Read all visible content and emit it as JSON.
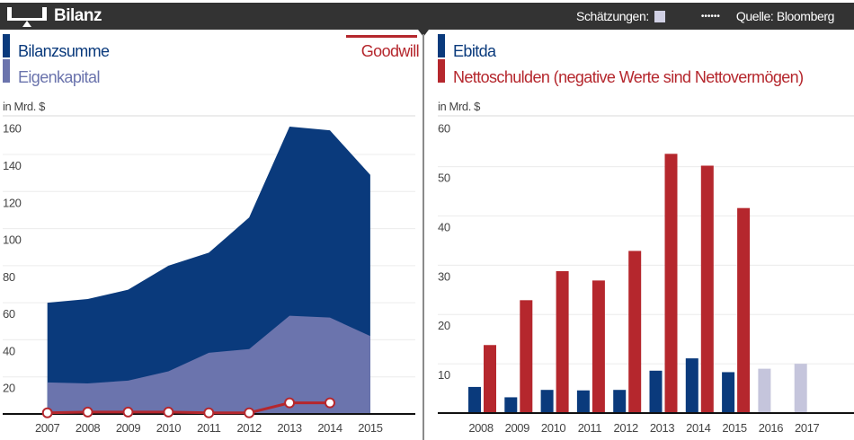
{
  "header": {
    "title": "Bilanz",
    "estimates_label": "Schätzungen:",
    "dots": "••••••",
    "source": "Quelle: Bloomberg",
    "icon": "balance-scale-icon"
  },
  "colors": {
    "bilanzsumme": "#0a3a7c",
    "eigenkapital": "#6b74ad",
    "goodwill": "#b5272d",
    "ebitda": "#0a3a7c",
    "nettoschulden": "#b5272d",
    "estimate": "#c5c5dc"
  },
  "chart_data": [
    {
      "type": "area",
      "unit": "in Mrd. $",
      "categories": [
        "2007",
        "2008",
        "2009",
        "2010",
        "2011",
        "2012",
        "2013",
        "2014",
        "2015"
      ],
      "ylim": [
        0,
        160
      ],
      "yticks": [
        20,
        40,
        60,
        80,
        100,
        120,
        140,
        160
      ],
      "grid": true,
      "legend": "top",
      "series": [
        {
          "name": "Bilanzsumme",
          "type": "area",
          "values": [
            60,
            62,
            67,
            80,
            87,
            106,
            155,
            153,
            129
          ]
        },
        {
          "name": "Eigenkapital",
          "type": "area",
          "values": [
            17,
            16.5,
            18,
            23,
            33,
            35,
            53,
            52,
            42
          ]
        },
        {
          "name": "Goodwill",
          "type": "line",
          "values": [
            0.6,
            1,
            1,
            1,
            0.6,
            0.6,
            6,
            6,
            null
          ]
        }
      ]
    },
    {
      "type": "bar",
      "unit": "in Mrd. $",
      "categories": [
        "2008",
        "2009",
        "2010",
        "2011",
        "2012",
        "2013",
        "2014",
        "2015",
        "2016",
        "2017"
      ],
      "ylim": [
        0,
        60
      ],
      "yticks": [
        10,
        20,
        30,
        40,
        50,
        60
      ],
      "grid": true,
      "legend": "top",
      "estimates_from": "2016",
      "series": [
        {
          "name": "Ebitda",
          "values": [
            5.3,
            3.2,
            4.7,
            4.6,
            4.7,
            8.6,
            11.1,
            8.3,
            9.0,
            10.0
          ]
        },
        {
          "name": "Nettoschulden (negative Werte sind Nettovermögen)",
          "values": [
            13.8,
            22.9,
            28.8,
            26.9,
            32.9,
            52.6,
            50.2,
            41.6,
            null,
            null
          ]
        }
      ]
    }
  ]
}
